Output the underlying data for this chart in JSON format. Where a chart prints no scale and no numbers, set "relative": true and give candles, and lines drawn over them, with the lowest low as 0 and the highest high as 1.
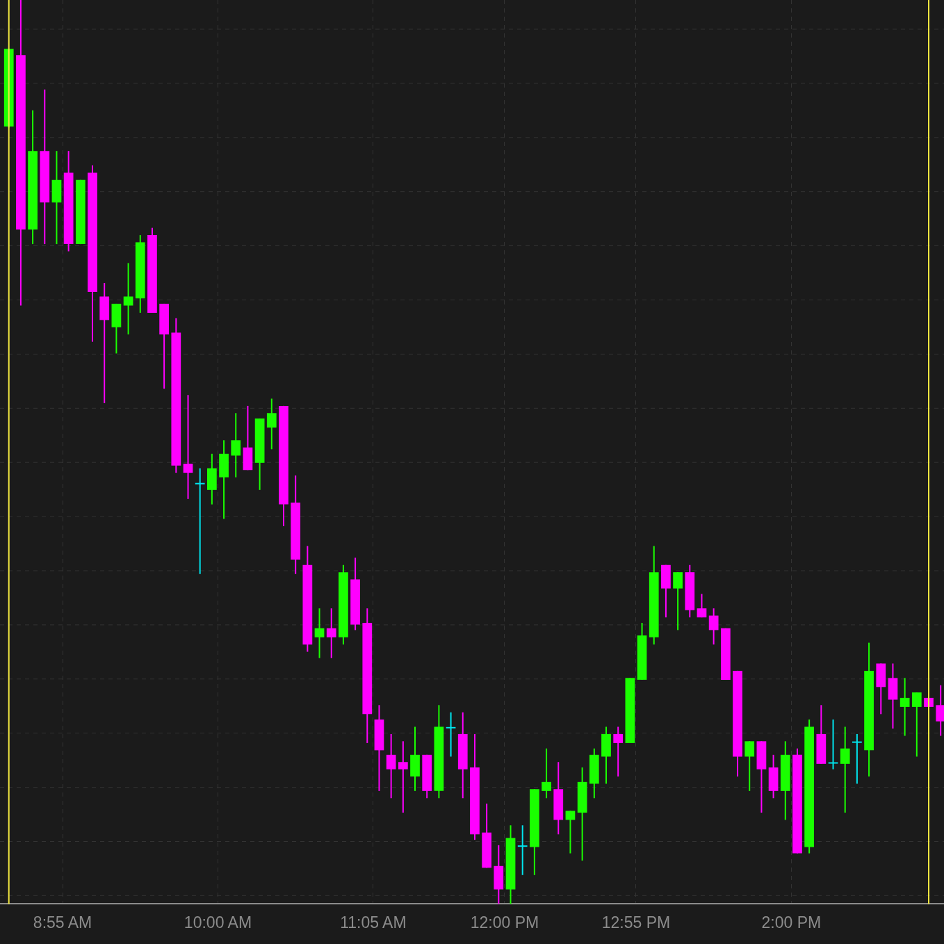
{
  "chart_data": {
    "type": "candlestick",
    "relative": true,
    "grid": true,
    "tick_labels": "x",
    "xlim": [
      8.48,
      15.065
    ],
    "xticks": [
      {
        "value": 8.9167,
        "label": "8:55 AM"
      },
      {
        "value": 10,
        "label": "10:00 AM"
      },
      {
        "value": 11.0833,
        "label": "11:05 AM"
      },
      {
        "value": 12,
        "label": "12:00 PM"
      },
      {
        "value": 12.9167,
        "label": "12:55 PM"
      },
      {
        "value": 14,
        "label": "2:00 PM"
      }
    ],
    "ref_lines": [
      {
        "axis": "x",
        "value": 8.5417,
        "label": null,
        "color": "#f0e640"
      },
      {
        "axis": "x",
        "value": 14.9583,
        "label": null,
        "color": "#f0e640"
      }
    ],
    "x": [
      8.5417,
      8.625,
      8.7083,
      8.7917,
      8.875,
      8.9583,
      9.0417,
      9.125,
      9.2083,
      9.2917,
      9.375,
      9.4583,
      9.5417,
      9.625,
      9.7083,
      9.7917,
      9.875,
      9.9583,
      10.0417,
      10.125,
      10.2083,
      10.2917,
      10.375,
      10.4583,
      10.5417,
      10.625,
      10.7083,
      10.7917,
      10.875,
      10.9583,
      11.0417,
      11.125,
      11.2083,
      11.2917,
      11.375,
      11.4583,
      11.5417,
      11.625,
      11.7083,
      11.7917,
      11.875,
      11.9583,
      12.0417,
      12.125,
      12.2083,
      12.2917,
      12.375,
      12.4583,
      12.5417,
      12.625,
      12.7083,
      12.7917,
      12.875,
      12.9583,
      13.0417,
      13.125,
      13.2083,
      13.2917,
      13.375,
      13.4583,
      13.5417,
      13.625,
      13.7083,
      13.7917,
      13.875,
      13.9583,
      14.0417,
      14.125,
      14.2083,
      14.2917,
      14.375,
      14.4583,
      14.5417,
      14.625,
      14.7083,
      14.7917,
      14.875,
      14.9583,
      15.0417
    ],
    "ohlc": [
      [
        0.86,
        0.946,
        0.859,
        0.946
      ],
      [
        0.939,
        1.0,
        0.662,
        0.746
      ],
      [
        0.746,
        0.878,
        0.73,
        0.833
      ],
      [
        0.833,
        0.901,
        0.73,
        0.776
      ],
      [
        0.776,
        0.833,
        0.73,
        0.801
      ],
      [
        0.809,
        0.833,
        0.722,
        0.73
      ],
      [
        0.73,
        0.801,
        0.73,
        0.801
      ],
      [
        0.809,
        0.817,
        0.622,
        0.677
      ],
      [
        0.672,
        0.687,
        0.554,
        0.646
      ],
      [
        0.638,
        0.664,
        0.609,
        0.664
      ],
      [
        0.662,
        0.709,
        0.63,
        0.672
      ],
      [
        0.67,
        0.74,
        0.654,
        0.732
      ],
      [
        0.74,
        0.748,
        0.654,
        0.654
      ],
      [
        0.664,
        0.664,
        0.57,
        0.63
      ],
      [
        0.632,
        0.648,
        0.477,
        0.485
      ],
      [
        0.487,
        0.563,
        0.448,
        0.477
      ],
      [
        0.465,
        0.482,
        0.365,
        0.465
      ],
      [
        0.458,
        0.498,
        0.442,
        0.482
      ],
      [
        0.472,
        0.513,
        0.426,
        0.498
      ],
      [
        0.496,
        0.543,
        0.472,
        0.513
      ],
      [
        0.505,
        0.551,
        0.48,
        0.48
      ],
      [
        0.488,
        0.537,
        0.458,
        0.537
      ],
      [
        0.527,
        0.559,
        0.503,
        0.543
      ],
      [
        0.551,
        0.551,
        0.418,
        0.442
      ],
      [
        0.444,
        0.474,
        0.365,
        0.381
      ],
      [
        0.375,
        0.396,
        0.279,
        0.287
      ],
      [
        0.295,
        0.327,
        0.272,
        0.305
      ],
      [
        0.305,
        0.327,
        0.272,
        0.295
      ],
      [
        0.295,
        0.375,
        0.287,
        0.367
      ],
      [
        0.359,
        0.383,
        0.303,
        0.309
      ],
      [
        0.311,
        0.327,
        0.178,
        0.21
      ],
      [
        0.204,
        0.22,
        0.125,
        0.17
      ],
      [
        0.165,
        0.188,
        0.117,
        0.149
      ],
      [
        0.157,
        0.18,
        0.101,
        0.149
      ],
      [
        0.141,
        0.196,
        0.125,
        0.165
      ],
      [
        0.165,
        0.165,
        0.117,
        0.125
      ],
      [
        0.125,
        0.22,
        0.117,
        0.196
      ],
      [
        0.195,
        0.212,
        0.163,
        0.195
      ],
      [
        0.188,
        0.212,
        0.117,
        0.149
      ],
      [
        0.151,
        0.188,
        0.071,
        0.077
      ],
      [
        0.079,
        0.111,
        0.04,
        0.04
      ],
      [
        0.042,
        0.065,
        0.0,
        0.016
      ],
      [
        0.016,
        0.087,
        0.0,
        0.073
      ],
      [
        0.064,
        0.087,
        0.032,
        0.064
      ],
      [
        0.063,
        0.127,
        0.032,
        0.127
      ],
      [
        0.125,
        0.172,
        0.117,
        0.135
      ],
      [
        0.127,
        0.157,
        0.077,
        0.093
      ],
      [
        0.093,
        0.103,
        0.056,
        0.103
      ],
      [
        0.101,
        0.151,
        0.048,
        0.135
      ],
      [
        0.133,
        0.172,
        0.117,
        0.165
      ],
      [
        0.163,
        0.196,
        0.133,
        0.188
      ],
      [
        0.188,
        0.196,
        0.141,
        0.178
      ],
      [
        0.178,
        0.25,
        0.178,
        0.25
      ],
      [
        0.248,
        0.311,
        0.248,
        0.297
      ],
      [
        0.295,
        0.396,
        0.287,
        0.367
      ],
      [
        0.375,
        0.375,
        0.317,
        0.349
      ],
      [
        0.349,
        0.367,
        0.303,
        0.367
      ],
      [
        0.367,
        0.375,
        0.317,
        0.325
      ],
      [
        0.327,
        0.343,
        0.317,
        0.317
      ],
      [
        0.319,
        0.327,
        0.287,
        0.303
      ],
      [
        0.305,
        0.305,
        0.248,
        0.248
      ],
      [
        0.258,
        0.258,
        0.141,
        0.163
      ],
      [
        0.163,
        0.18,
        0.125,
        0.18
      ],
      [
        0.18,
        0.18,
        0.101,
        0.149
      ],
      [
        0.151,
        0.165,
        0.117,
        0.125
      ],
      [
        0.125,
        0.18,
        0.093,
        0.165
      ],
      [
        0.165,
        0.172,
        0.056,
        0.056
      ],
      [
        0.063,
        0.204,
        0.056,
        0.196
      ],
      [
        0.188,
        0.22,
        0.155,
        0.155
      ],
      [
        0.156,
        0.204,
        0.149,
        0.156
      ],
      [
        0.155,
        0.196,
        0.101,
        0.172
      ],
      [
        0.179,
        0.188,
        0.133,
        0.179
      ],
      [
        0.17,
        0.289,
        0.141,
        0.258
      ],
      [
        0.266,
        0.266,
        0.21,
        0.24
      ],
      [
        0.25,
        0.266,
        0.194,
        0.226
      ],
      [
        0.218,
        0.25,
        0.186,
        0.228
      ],
      [
        0.218,
        0.234,
        0.163,
        0.234
      ],
      [
        0.228,
        0.228,
        0.218,
        0.218
      ],
      [
        0.22,
        0.242,
        0.186,
        0.202
      ]
    ],
    "colors": [
      "#1aff00",
      "#ff00ff",
      "#1aff00",
      "#ff00ff",
      "#1aff00",
      "#ff00ff",
      "#1aff00",
      "#ff00ff",
      "#ff00ff",
      "#1aff00",
      "#1aff00",
      "#1aff00",
      "#ff00ff",
      "#ff00ff",
      "#ff00ff",
      "#ff00ff",
      "#00e5ee",
      "#1aff00",
      "#1aff00",
      "#1aff00",
      "#ff00ff",
      "#1aff00",
      "#1aff00",
      "#ff00ff",
      "#ff00ff",
      "#ff00ff",
      "#1aff00",
      "#ff00ff",
      "#1aff00",
      "#ff00ff",
      "#ff00ff",
      "#ff00ff",
      "#ff00ff",
      "#ff00ff",
      "#1aff00",
      "#ff00ff",
      "#1aff00",
      "#00e5ee",
      "#ff00ff",
      "#ff00ff",
      "#ff00ff",
      "#ff00ff",
      "#1aff00",
      "#00e5ee",
      "#1aff00",
      "#1aff00",
      "#ff00ff",
      "#1aff00",
      "#1aff00",
      "#1aff00",
      "#1aff00",
      "#ff00ff",
      "#1aff00",
      "#1aff00",
      "#1aff00",
      "#ff00ff",
      "#1aff00",
      "#ff00ff",
      "#ff00ff",
      "#ff00ff",
      "#ff00ff",
      "#ff00ff",
      "#1aff00",
      "#ff00ff",
      "#ff00ff",
      "#1aff00",
      "#ff00ff",
      "#1aff00",
      "#ff00ff",
      "#00e5ee",
      "#1aff00",
      "#00e5ee",
      "#1aff00",
      "#ff00ff",
      "#ff00ff",
      "#1aff00",
      "#1aff00",
      "#ff00ff",
      "#ff00ff"
    ]
  }
}
